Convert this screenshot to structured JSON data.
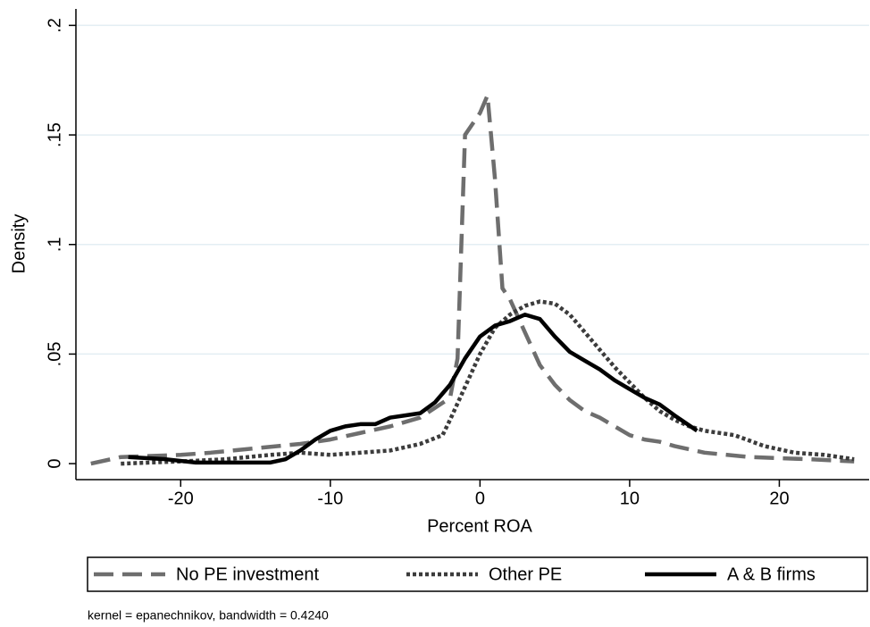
{
  "chart_data": {
    "type": "line",
    "x_label": "Percent ROA",
    "y_label": "Density",
    "note": "kernel = epanechnikov, bandwidth = 0.4240",
    "xlim": [
      -27,
      26
    ],
    "xticks": [
      -20,
      -10,
      0,
      10,
      20
    ],
    "ylim": [
      -0.0073,
      0.2075
    ],
    "yticks": [
      0,
      {
        "value": 0.05,
        "label": ".05"
      },
      {
        "value": 0.1,
        "label": ".1"
      },
      {
        "value": 0.15,
        "label": ".15"
      },
      {
        "value": 0.2,
        "label": ".2"
      }
    ],
    "grid": true,
    "legend": "bottom",
    "series": [
      {
        "name": "No PE investment",
        "color": "#6e6e6e",
        "style": "dashed",
        "x": [
          -26,
          -24,
          -20,
          -18,
          -15,
          -12,
          -10,
          -8,
          -6,
          -4,
          -2,
          -1.5,
          -1,
          0,
          0.5,
          1,
          1.5,
          2,
          3,
          4,
          5,
          6,
          7,
          8,
          9,
          10,
          11,
          12,
          13,
          15,
          18,
          22,
          25
        ],
        "values": [
          0,
          0.003,
          0.004,
          0.005,
          0.007,
          0.009,
          0.011,
          0.014,
          0.017,
          0.021,
          0.03,
          0.048,
          0.15,
          0.16,
          0.168,
          0.13,
          0.08,
          0.075,
          0.06,
          0.045,
          0.036,
          0.029,
          0.024,
          0.021,
          0.017,
          0.013,
          0.011,
          0.01,
          0.008,
          0.005,
          0.003,
          0.002,
          0.001
        ]
      },
      {
        "name": "Other PE",
        "color": "#3c3c3c",
        "style": "dotted",
        "x": [
          -24,
          -20,
          -17,
          -14,
          -12,
          -10,
          -8,
          -6,
          -4,
          -2.5,
          -2,
          -1,
          0,
          1,
          2,
          3,
          4,
          5,
          6,
          7,
          8,
          9,
          10,
          11,
          12,
          13,
          14,
          15,
          17,
          19,
          21,
          23,
          25
        ],
        "values": [
          0,
          0.001,
          0.002,
          0.004,
          0.005,
          0.004,
          0.005,
          0.006,
          0.009,
          0.013,
          0.02,
          0.035,
          0.05,
          0.062,
          0.068,
          0.072,
          0.074,
          0.073,
          0.068,
          0.06,
          0.052,
          0.044,
          0.037,
          0.03,
          0.024,
          0.02,
          0.017,
          0.015,
          0.013,
          0.008,
          0.005,
          0.004,
          0.002
        ]
      },
      {
        "name": "A & B firms",
        "color": "#000000",
        "style": "solid",
        "x": [
          -23.5,
          -21,
          -19,
          -16,
          -14,
          -13,
          -12,
          -11,
          -10,
          -9,
          -8,
          -7,
          -6,
          -5,
          -4,
          -3,
          -2,
          -1,
          0,
          1,
          2,
          3,
          4,
          5,
          6,
          7,
          8,
          9,
          10,
          11,
          12,
          13,
          14.5
        ],
        "values": [
          0.003,
          0.002,
          0.0005,
          0.0005,
          0.0005,
          0.002,
          0.006,
          0.011,
          0.015,
          0.017,
          0.018,
          0.018,
          0.021,
          0.022,
          0.023,
          0.028,
          0.036,
          0.048,
          0.058,
          0.063,
          0.065,
          0.068,
          0.066,
          0.058,
          0.051,
          0.047,
          0.043,
          0.038,
          0.034,
          0.03,
          0.027,
          0.022,
          0.015
        ]
      }
    ]
  }
}
